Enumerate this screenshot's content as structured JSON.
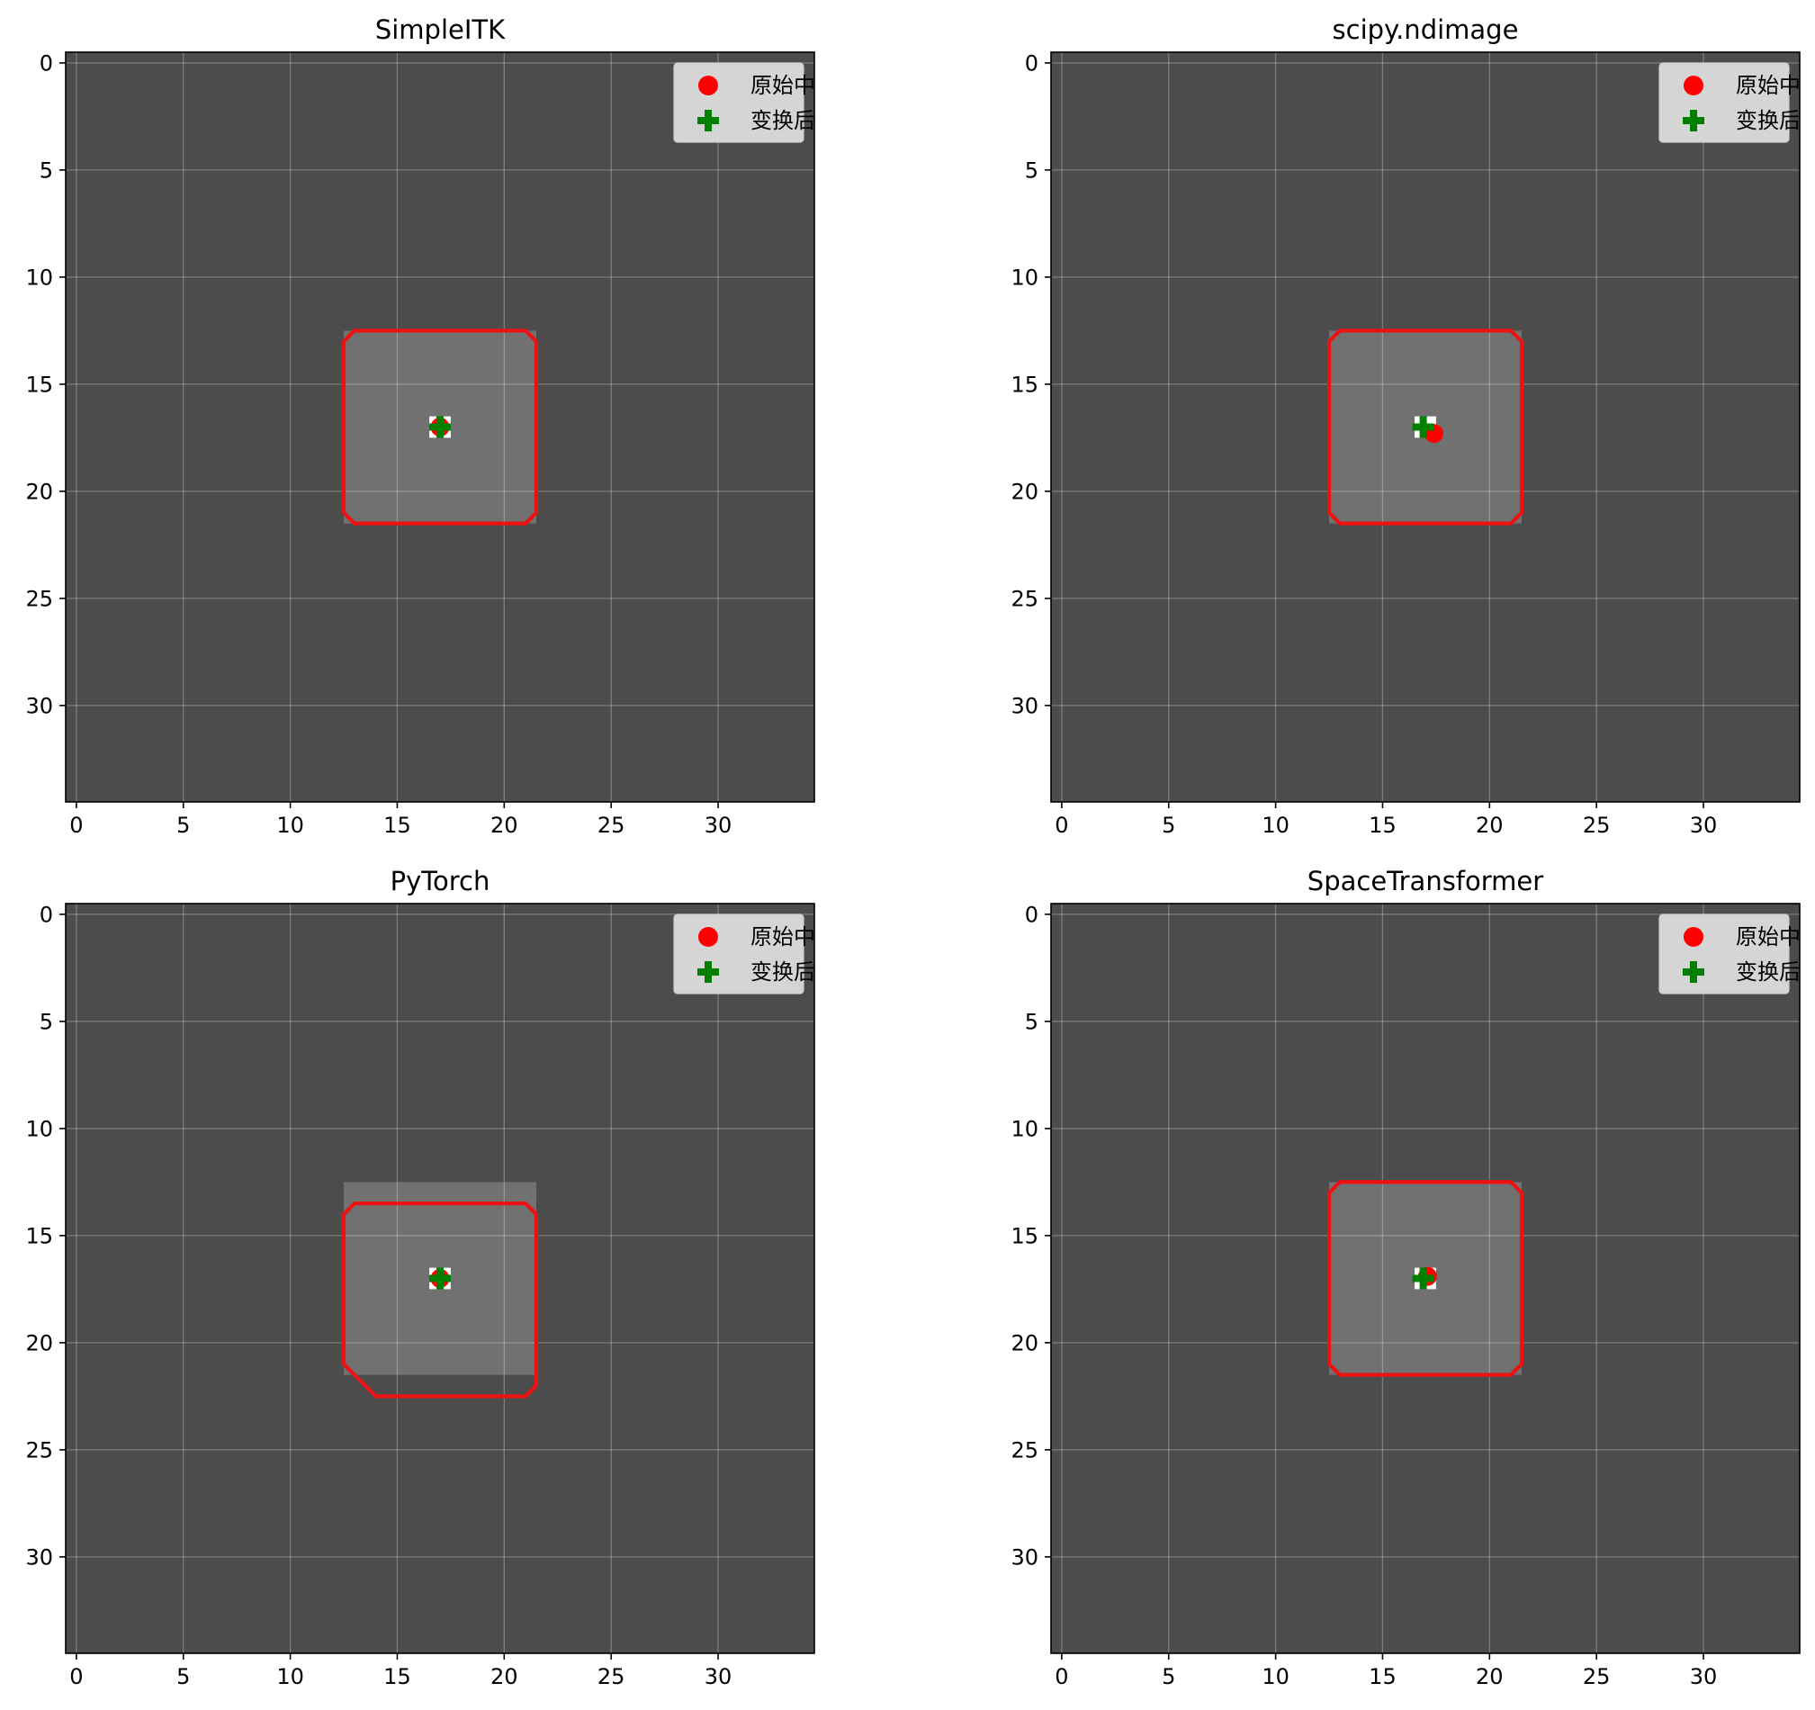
{
  "chart_data": [
    {
      "type": "image",
      "title": "SimpleITK",
      "xlim": [
        -0.5,
        34.5
      ],
      "ylim": [
        34.5,
        -0.5
      ],
      "xticks": [
        0,
        5,
        10,
        15,
        20,
        25,
        30
      ],
      "yticks": [
        0,
        5,
        10,
        15,
        20,
        25,
        30
      ],
      "grid": true,
      "legend_position": "top-right",
      "legend": [
        "原始中",
        "变换后"
      ],
      "image": {
        "background_color": "#4c4c4c",
        "square_color": "#717171",
        "square_range": [
          12.5,
          21.5,
          12.5,
          21.5
        ],
        "center_marker_range": [
          16.5,
          17.5,
          16.5,
          17.5
        ]
      },
      "contour_color": "#ee1111",
      "contour_points": [
        [
          13,
          12.5
        ],
        [
          21,
          12.5
        ],
        [
          21.5,
          13
        ],
        [
          21.5,
          21
        ],
        [
          21,
          21.5
        ],
        [
          13,
          21.5
        ],
        [
          12.5,
          21
        ],
        [
          12.5,
          13
        ]
      ],
      "red_center": {
        "x": 17.0,
        "y": 17.0
      },
      "green_center": {
        "x": 17.0,
        "y": 17.0
      }
    },
    {
      "type": "image",
      "title": "scipy.ndimage",
      "xlim": [
        -0.5,
        34.5
      ],
      "ylim": [
        34.5,
        -0.5
      ],
      "xticks": [
        0,
        5,
        10,
        15,
        20,
        25,
        30
      ],
      "yticks": [
        0,
        5,
        10,
        15,
        20,
        25,
        30
      ],
      "grid": true,
      "legend_position": "top-right",
      "legend": [
        "原始中",
        "变换后"
      ],
      "image": {
        "background_color": "#4c4c4c",
        "square_color": "#717171",
        "square_range": [
          12.5,
          21.5,
          12.5,
          21.5
        ],
        "center_marker_range": [
          16.5,
          17.5,
          16.5,
          17.5
        ]
      },
      "contour_color": "#ee1111",
      "contour_points": [
        [
          13,
          12.5
        ],
        [
          21,
          12.5
        ],
        [
          21.5,
          13
        ],
        [
          21.5,
          21
        ],
        [
          21,
          21.5
        ],
        [
          13,
          21.5
        ],
        [
          12.5,
          21
        ],
        [
          12.5,
          13
        ]
      ],
      "red_center": {
        "x": 17.4,
        "y": 17.3
      },
      "green_center": {
        "x": 16.9,
        "y": 17.0
      }
    },
    {
      "type": "image",
      "title": "PyTorch",
      "xlim": [
        -0.5,
        34.5
      ],
      "ylim": [
        34.5,
        -0.5
      ],
      "xticks": [
        0,
        5,
        10,
        15,
        20,
        25,
        30
      ],
      "yticks": [
        0,
        5,
        10,
        15,
        20,
        25,
        30
      ],
      "grid": true,
      "legend_position": "top-right",
      "legend": [
        "原始中",
        "变换后"
      ],
      "image": {
        "background_color": "#4c4c4c",
        "square_color": "#717171",
        "square_range": [
          12.5,
          21.5,
          12.5,
          21.5
        ],
        "center_marker_range": [
          16.5,
          17.5,
          16.5,
          17.5
        ]
      },
      "contour_color": "#ee1111",
      "contour_points": [
        [
          13,
          13.5
        ],
        [
          21,
          13.5
        ],
        [
          21.5,
          14
        ],
        [
          21.5,
          22
        ],
        [
          21,
          22.5
        ],
        [
          14,
          22.5
        ],
        [
          12.5,
          21
        ],
        [
          12.5,
          14
        ]
      ],
      "red_center": {
        "x": 17.0,
        "y": 17.0
      },
      "green_center": {
        "x": 17.0,
        "y": 17.0
      }
    },
    {
      "type": "image",
      "title": "SpaceTransformer",
      "xlim": [
        -0.5,
        34.5
      ],
      "ylim": [
        34.5,
        -0.5
      ],
      "xticks": [
        0,
        5,
        10,
        15,
        20,
        25,
        30
      ],
      "yticks": [
        0,
        5,
        10,
        15,
        20,
        25,
        30
      ],
      "grid": true,
      "legend_position": "top-right",
      "legend": [
        "原始中",
        "变换后"
      ],
      "image": {
        "background_color": "#4c4c4c",
        "square_color": "#717171",
        "square_range": [
          12.5,
          21.5,
          12.5,
          21.5
        ],
        "center_marker_range": [
          16.5,
          17.5,
          16.5,
          17.5
        ]
      },
      "contour_color": "#ee1111",
      "contour_points": [
        [
          13,
          12.5
        ],
        [
          21,
          12.5
        ],
        [
          21.5,
          13
        ],
        [
          21.5,
          21
        ],
        [
          21,
          21.5
        ],
        [
          13,
          21.5
        ],
        [
          12.5,
          21
        ],
        [
          12.5,
          13
        ]
      ],
      "red_center": {
        "x": 17.1,
        "y": 16.9
      },
      "green_center": {
        "x": 16.9,
        "y": 17.0
      }
    }
  ]
}
